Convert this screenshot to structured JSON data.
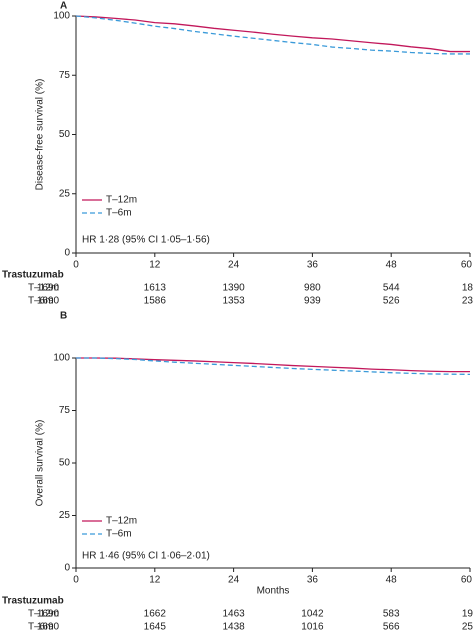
{
  "chart_data": [
    {
      "type": "line",
      "panel_label": "A",
      "y_label": "Disease-free survival (%)",
      "x": [
        0,
        3,
        6,
        9,
        12,
        15,
        18,
        21,
        24,
        27,
        30,
        33,
        36,
        39,
        42,
        45,
        48,
        51,
        54,
        57,
        60
      ],
      "series": [
        {
          "name": "T–12m",
          "color": "#c2185b",
          "dash": false,
          "values": [
            100,
            99.6,
            99,
            98.3,
            97.2,
            96.7,
            95.8,
            94.8,
            94,
            93.2,
            92.3,
            91.5,
            90.8,
            90.3,
            89.5,
            88.7,
            88,
            87,
            86.2,
            85,
            85
          ]
        },
        {
          "name": "T–6m",
          "color": "#3a9ad9",
          "dash": true,
          "values": [
            100,
            99.2,
            98.2,
            97,
            95.7,
            94.7,
            93.5,
            92.5,
            91.5,
            90.6,
            89.7,
            88.8,
            88,
            86.9,
            86.3,
            85.6,
            85.2,
            84.6,
            84.2,
            84,
            84
          ]
        }
      ],
      "xlim": [
        0,
        60
      ],
      "ylim": [
        0,
        100
      ],
      "xticks": [
        0,
        12,
        24,
        36,
        48,
        60
      ],
      "yticks": [
        0,
        25,
        50,
        75,
        100
      ],
      "annotation": "HR 1·28 (95% CI 1·05–1·56)",
      "risk_table": {
        "title": "Trastuzumab",
        "rows": [
          {
            "name": "T–12m",
            "values": [
              "1690",
              "1613",
              "1390",
              "980",
              "544",
              "18"
            ]
          },
          {
            "name": "T–6m",
            "values": [
              "1690",
              "1586",
              "1353",
              "939",
              "526",
              "23"
            ]
          }
        ]
      }
    },
    {
      "type": "line",
      "panel_label": "B",
      "y_label": "Overall survival (%)",
      "x_label": "Months",
      "x": [
        0,
        3,
        6,
        9,
        12,
        15,
        18,
        21,
        24,
        27,
        30,
        33,
        36,
        39,
        42,
        45,
        48,
        51,
        54,
        57,
        60
      ],
      "series": [
        {
          "name": "T–12m",
          "color": "#c2185b",
          "dash": false,
          "values": [
            100,
            100,
            99.9,
            99.6,
            99.2,
            98.9,
            98.6,
            98.2,
            97.8,
            97.4,
            96.9,
            96.4,
            96,
            95.6,
            95.2,
            94.7,
            94.4,
            94,
            93.7,
            93.5,
            93.5
          ]
        },
        {
          "name": "T–6m",
          "color": "#3a9ad9",
          "dash": true,
          "values": [
            100,
            100,
            99.7,
            99.3,
            98.6,
            98,
            97.5,
            97,
            96.5,
            96,
            95.5,
            95,
            94.6,
            94.2,
            93.8,
            93.4,
            93,
            92.7,
            92.4,
            92.3,
            92.2
          ]
        }
      ],
      "xlim": [
        0,
        60
      ],
      "ylim": [
        0,
        100
      ],
      "xticks": [
        0,
        12,
        24,
        36,
        48,
        60
      ],
      "yticks": [
        0,
        25,
        50,
        75,
        100
      ],
      "annotation": "HR 1·46 (95% CI 1·06–2·01)",
      "risk_table": {
        "title": "Trastuzumab",
        "rows": [
          {
            "name": "T–12m",
            "values": [
              "1690",
              "1662",
              "1463",
              "1042",
              "583",
              "19"
            ]
          },
          {
            "name": "T–6m",
            "values": [
              "1690",
              "1645",
              "1438",
              "1016",
              "566",
              "25"
            ]
          }
        ]
      }
    }
  ]
}
